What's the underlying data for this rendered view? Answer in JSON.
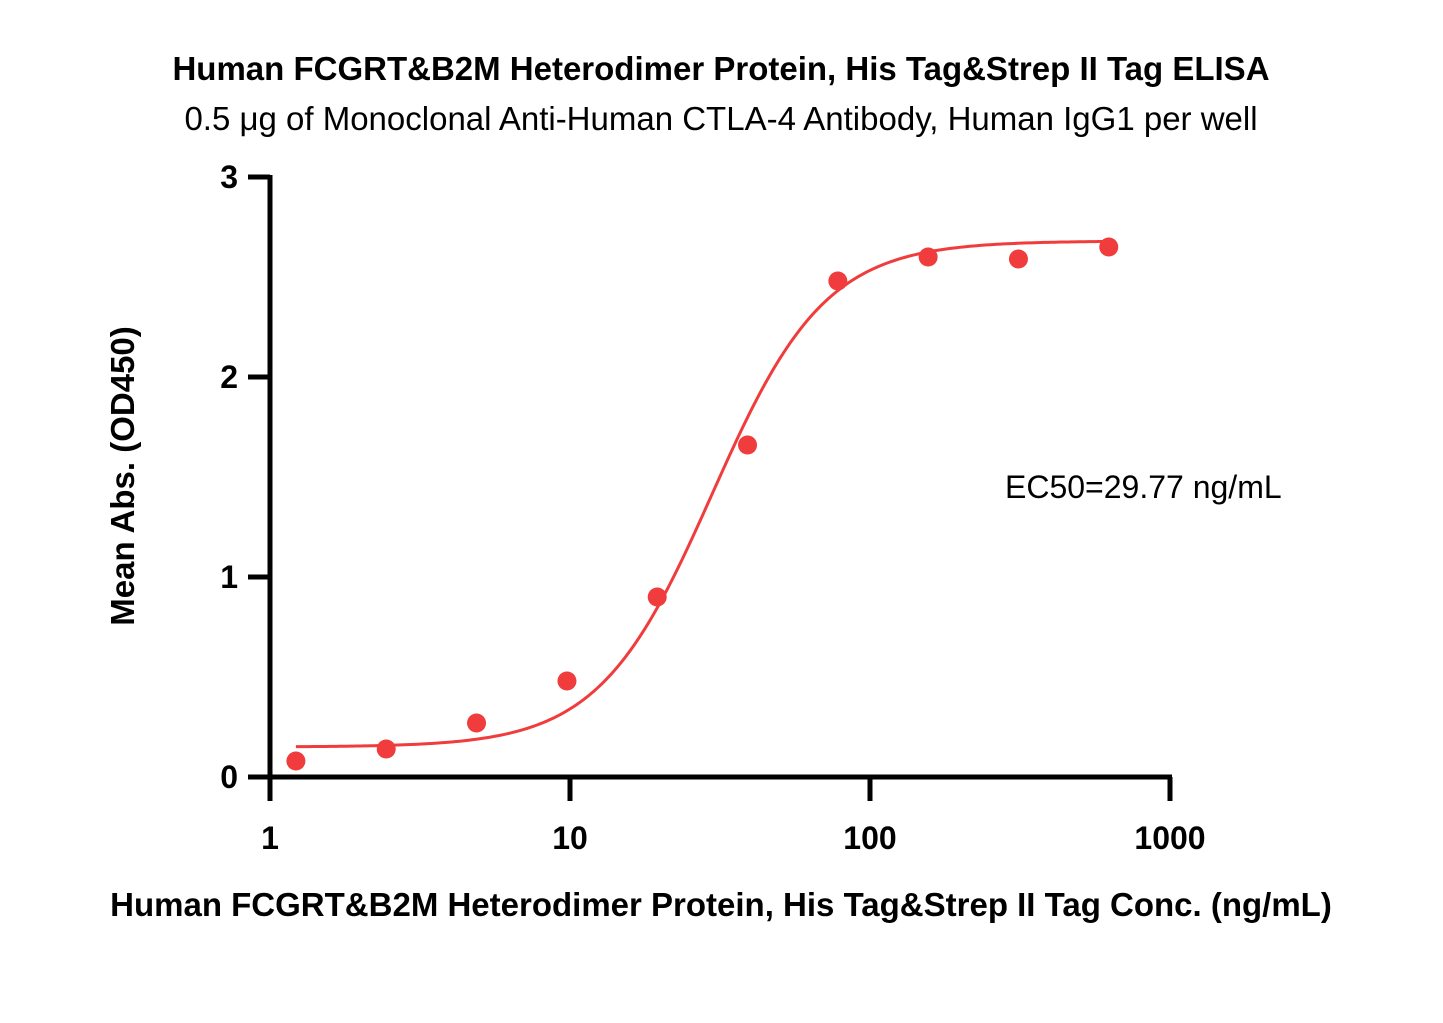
{
  "chart_data": {
    "type": "scatter",
    "title": "Human FCGRT&B2M Heterodimer Protein, His Tag&Strep II Tag ELISA",
    "subtitle": "0.5 μg of Monoclonal Anti-Human CTLA-4 Antibody, Human IgG1 per well",
    "xlabel": "Human FCGRT&B2M Heterodimer Protein, His Tag&Strep II Tag Conc. (ng/mL)",
    "ylabel": "Mean Abs. (OD450)",
    "x_scale": "log",
    "xlim": [
      1,
      1000
    ],
    "ylim": [
      0,
      3
    ],
    "x_ticks": [
      1,
      10,
      100,
      1000
    ],
    "x_tick_labels": [
      "1",
      "10",
      "100",
      "1000"
    ],
    "y_ticks": [
      0,
      1,
      2,
      3
    ],
    "y_tick_labels": [
      "0",
      "1",
      "2",
      "3"
    ],
    "grid": false,
    "color": "#f03c3c",
    "series": [
      {
        "x": [
          1.22,
          2.44,
          4.88,
          9.77,
          19.53,
          39.06,
          78.13,
          156.25,
          312.5,
          625
        ],
        "y": [
          0.08,
          0.14,
          0.27,
          0.48,
          0.9,
          1.66,
          2.48,
          2.6,
          2.59,
          2.65
        ]
      }
    ],
    "fit": {
      "type": "4PL",
      "bottom": 0.15,
      "top": 2.68,
      "ec50": 29.77,
      "hill": 2.3
    },
    "annotations": [
      "EC50=29.77 ng/mL"
    ]
  }
}
